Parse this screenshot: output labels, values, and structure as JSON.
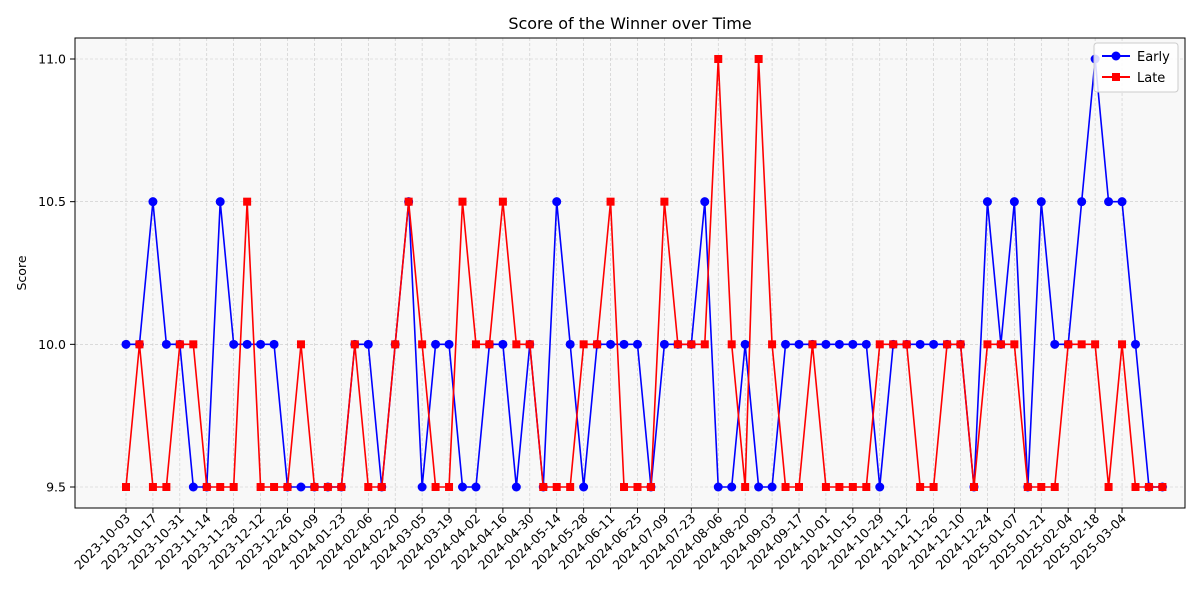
{
  "chart_data": {
    "type": "line",
    "title": "Score of the Winner over Time",
    "xlabel": "",
    "ylabel": "Score",
    "ylim": [
      9.5,
      11.0
    ],
    "yticks": [
      "9.5",
      "10.0",
      "10.5",
      "11.0"
    ],
    "grid": true,
    "legend_position": "top-right",
    "x_tick_labels": [
      "2023-10-03",
      "2023-10-17",
      "2023-10-31",
      "2023-11-14",
      "2023-11-28",
      "2023-12-12",
      "2023-12-26",
      "2024-01-09",
      "2024-01-23",
      "2024-02-06",
      "2024-02-20",
      "2024-03-05",
      "2024-03-19",
      "2024-04-02",
      "2024-04-16",
      "2024-04-30",
      "2024-05-14",
      "2024-05-28",
      "2024-06-11",
      "2024-06-25",
      "2024-07-09",
      "2024-07-23",
      "2024-08-06",
      "2024-08-20",
      "2024-09-03",
      "2024-09-17",
      "2024-10-01",
      "2024-10-15",
      "2024-10-29",
      "2024-11-12",
      "2024-11-26",
      "2024-12-10",
      "2024-12-24",
      "2025-01-07",
      "2025-01-21",
      "2025-02-04",
      "2025-02-18",
      "2025-03-04"
    ],
    "series": [
      {
        "name": "Early",
        "color": "#0000ff",
        "marker": "circle",
        "values": [
          10.0,
          10.0,
          10.5,
          10.0,
          10.0,
          9.5,
          9.5,
          10.5,
          10.0,
          10.0,
          10.0,
          10.0,
          9.5,
          9.5,
          9.5,
          9.5,
          9.5,
          10.0,
          10.0,
          9.5,
          10.0,
          10.5,
          9.5,
          10.0,
          10.0,
          9.5,
          9.5,
          10.0,
          10.0,
          9.5,
          10.0,
          9.5,
          10.5,
          10.0,
          9.5,
          10.0,
          10.0,
          10.0,
          10.0,
          9.5,
          10.0,
          10.0,
          10.0,
          10.5,
          9.5,
          9.5,
          10.0,
          9.5,
          9.5,
          10.0,
          10.0,
          10.0,
          10.0,
          10.0,
          10.0,
          10.0,
          9.5,
          10.0,
          10.0,
          10.0,
          10.0,
          10.0,
          10.0,
          9.5,
          10.5,
          10.0,
          10.5,
          9.5,
          10.5,
          10.0,
          10.0,
          10.5,
          11.0,
          10.5,
          10.5,
          10.0,
          9.5,
          9.5
        ]
      },
      {
        "name": "Late",
        "color": "#ff0000",
        "marker": "square",
        "values": [
          9.5,
          10.0,
          9.5,
          9.5,
          10.0,
          10.0,
          9.5,
          9.5,
          9.5,
          10.5,
          9.5,
          9.5,
          9.5,
          10.0,
          9.5,
          9.5,
          9.5,
          10.0,
          9.5,
          9.5,
          10.0,
          10.5,
          10.0,
          9.5,
          9.5,
          10.5,
          10.0,
          10.0,
          10.5,
          10.0,
          10.0,
          9.5,
          9.5,
          9.5,
          10.0,
          10.0,
          10.5,
          9.5,
          9.5,
          9.5,
          10.5,
          10.0,
          10.0,
          10.0,
          11.0,
          10.0,
          9.5,
          11.0,
          10.0,
          9.5,
          9.5,
          10.0,
          9.5,
          9.5,
          9.5,
          9.5,
          10.0,
          10.0,
          10.0,
          9.5,
          9.5,
          10.0,
          10.0,
          9.5,
          10.0,
          10.0,
          10.0,
          9.5,
          9.5,
          9.5,
          10.0,
          10.0,
          10.0,
          9.5,
          10.0,
          9.5,
          9.5,
          9.5
        ]
      }
    ]
  }
}
